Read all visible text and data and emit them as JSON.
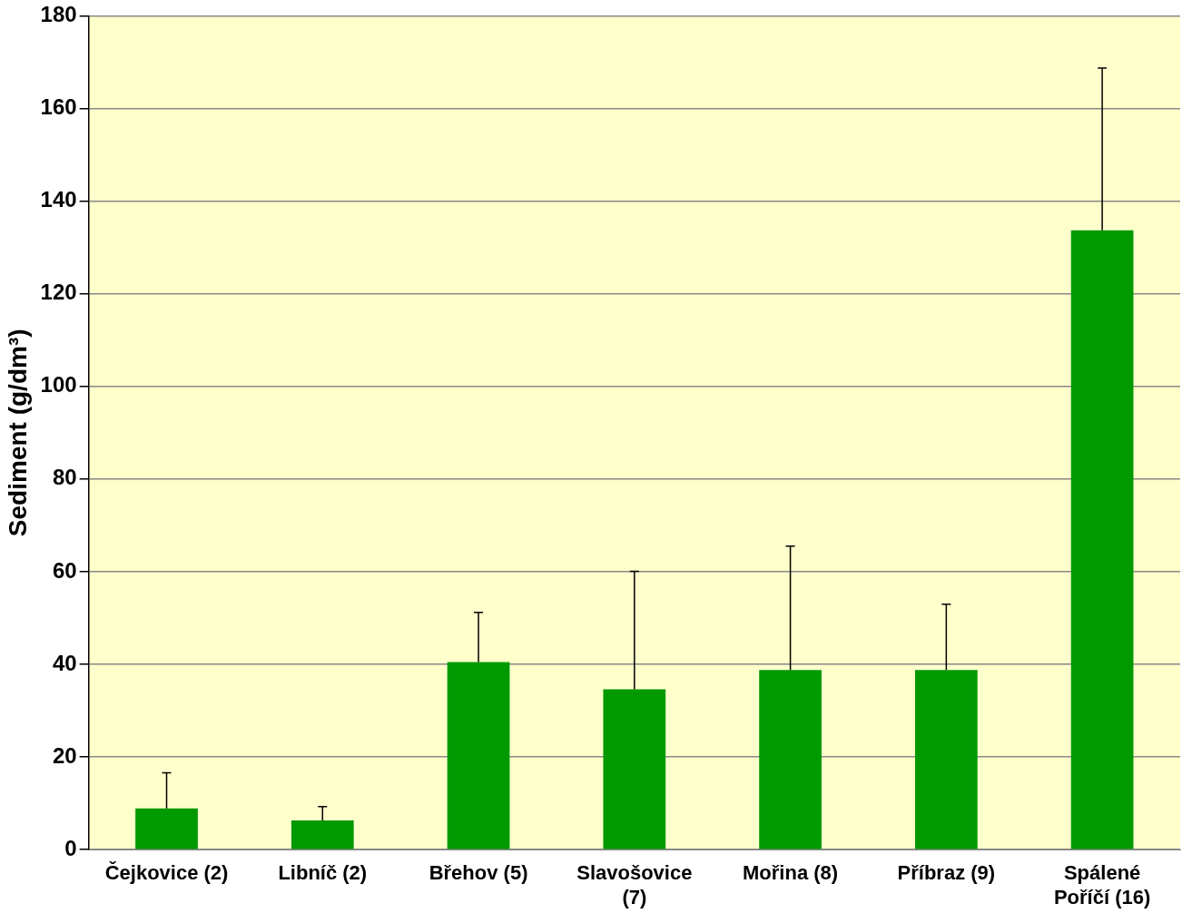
{
  "chart_data": {
    "type": "bar",
    "ylabel": "Sediment (g/dm³)",
    "categories": [
      "Čejkovice (2)",
      "Libníč (2)",
      "Břehov (5)",
      "Slavošovice (7)",
      "Mořina (8)",
      "Příbraz (9)",
      "Spálené Poříčí (16)"
    ],
    "values": [
      8.9,
      6.3,
      40.5,
      34.6,
      38.8,
      38.8,
      133.7
    ],
    "errors": [
      [
        8.9,
        16.6
      ],
      [
        6.3,
        9.3
      ],
      [
        40.5,
        51.2
      ],
      [
        34.6,
        60.1
      ],
      [
        38.8,
        65.5
      ],
      [
        38.8,
        53.0
      ],
      [
        133.7,
        168.7
      ]
    ],
    "color": "#009900",
    "ylim": [
      0,
      180
    ],
    "yticks": [
      0,
      20,
      40,
      60,
      80,
      100,
      120,
      140,
      160,
      180
    ],
    "grid": "y",
    "legend": false
  }
}
